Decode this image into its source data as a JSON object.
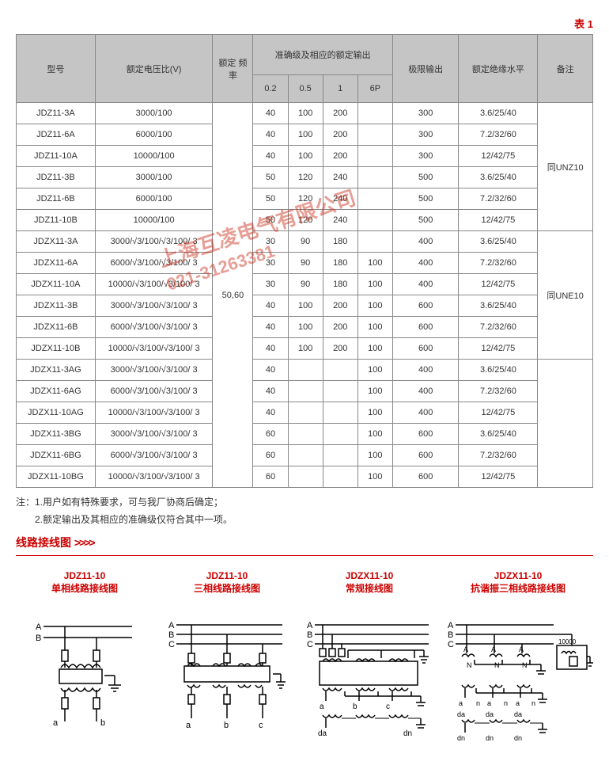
{
  "tableLabel": "表 1",
  "headers": {
    "model": "型号",
    "ratioV": "额定电压比(V)",
    "freq": "额定\n频率",
    "accuracy": "准确级及相应的额定输出",
    "limitOut": "极限输出",
    "insLevel": "额定绝缘水平",
    "remark": "备注",
    "sub": [
      "0.2",
      "0.5",
      "1",
      "6P"
    ]
  },
  "freqVal": "50,60",
  "rows": [
    {
      "m": "JDZ11-3A",
      "r": "3000/100",
      "a": [
        "40",
        "100",
        "200",
        ""
      ],
      "l": "300",
      "i": "3.6/25/40"
    },
    {
      "m": "JDZ11-6A",
      "r": "6000/100",
      "a": [
        "40",
        "100",
        "200",
        ""
      ],
      "l": "300",
      "i": "7.2/32/60"
    },
    {
      "m": "JDZ11-10A",
      "r": "10000/100",
      "a": [
        "40",
        "100",
        "200",
        ""
      ],
      "l": "300",
      "i": "12/42/75"
    },
    {
      "m": "JDZ11-3B",
      "r": "3000/100",
      "a": [
        "50",
        "120",
        "240",
        ""
      ],
      "l": "500",
      "i": "3.6/25/40"
    },
    {
      "m": "JDZ11-6B",
      "r": "6000/100",
      "a": [
        "50",
        "120",
        "240",
        ""
      ],
      "l": "500",
      "i": "7.2/32/60"
    },
    {
      "m": "JDZ11-10B",
      "r": "10000/100",
      "a": [
        "50",
        "120",
        "240",
        ""
      ],
      "l": "500",
      "i": "12/42/75"
    },
    {
      "m": "JDZX11-3A",
      "r": "3000/√3/100/√3/100/ 3",
      "a": [
        "30",
        "90",
        "180",
        ""
      ],
      "l": "400",
      "i": "3.6/25/40"
    },
    {
      "m": "JDZX11-6A",
      "r": "6000/√3/100/√3/100/ 3",
      "a": [
        "30",
        "90",
        "180",
        "100"
      ],
      "l": "400",
      "i": "7.2/32/60"
    },
    {
      "m": "JDZX11-10A",
      "r": "10000/√3/100/√3/100/ 3",
      "a": [
        "30",
        "90",
        "180",
        "100"
      ],
      "l": "400",
      "i": "12/42/75"
    },
    {
      "m": "JDZX11-3B",
      "r": "3000/√3/100/√3/100/ 3",
      "a": [
        "40",
        "100",
        "200",
        "100"
      ],
      "l": "600",
      "i": "3.6/25/40"
    },
    {
      "m": "JDZX11-6B",
      "r": "6000/√3/100/√3/100/ 3",
      "a": [
        "40",
        "100",
        "200",
        "100"
      ],
      "l": "600",
      "i": "7.2/32/60"
    },
    {
      "m": "JDZX11-10B",
      "r": "10000/√3/100/√3/100/ 3",
      "a": [
        "40",
        "100",
        "200",
        "100"
      ],
      "l": "600",
      "i": "12/42/75"
    },
    {
      "m": "JDZX11-3AG",
      "r": "3000/√3/100/√3/100/ 3",
      "a": [
        "40",
        "",
        "",
        "100"
      ],
      "l": "400",
      "i": "3.6/25/40"
    },
    {
      "m": "JDZX11-6AG",
      "r": "6000/√3/100/√3/100/ 3",
      "a": [
        "40",
        "",
        "",
        "100"
      ],
      "l": "400",
      "i": "7.2/32/60"
    },
    {
      "m": "JDZX11-10AG",
      "r": "10000/√3/100/√3/100/ 3",
      "a": [
        "40",
        "",
        "",
        "100"
      ],
      "l": "400",
      "i": "12/42/75"
    },
    {
      "m": "JDZX11-3BG",
      "r": "3000/√3/100/√3/100/ 3",
      "a": [
        "60",
        "",
        "",
        "100"
      ],
      "l": "600",
      "i": "3.6/25/40"
    },
    {
      "m": "JDZX11-6BG",
      "r": "6000/√3/100/√3/100/ 3",
      "a": [
        "60",
        "",
        "",
        "100"
      ],
      "l": "600",
      "i": "7.2/32/60"
    },
    {
      "m": "JDZX11-10BG",
      "r": "10000/√3/100/√3/100/ 3",
      "a": [
        "60",
        "",
        "",
        "100"
      ],
      "l": "600",
      "i": "12/42/75"
    }
  ],
  "remarkGroups": [
    {
      "text": "同UNZ10",
      "span": 6
    },
    {
      "text": "同UNE10",
      "span": 6
    },
    {
      "text": "",
      "span": 6
    }
  ],
  "notes": [
    "注：1.用户如有特殊要求，可与我厂协商后确定；",
    "　　2.额定输出及其相应的准确级仅符合其中一项。"
  ],
  "sectionTitle": "线路接线图",
  "sectionArrows": ">>>>",
  "diagrams": [
    {
      "t1": "JDZ11-10",
      "t2": "单相线路接线图"
    },
    {
      "t1": "JDZ11-10",
      "t2": "三相线路接线图"
    },
    {
      "t1": "JDZX11-10",
      "t2": "常规接线图"
    },
    {
      "t1": "JDZX11-10",
      "t2": "抗谐振三相线路接线图"
    }
  ],
  "watermark": {
    "l1": "上海互凌电气有限公司",
    "l2": "021-31263381"
  },
  "colors": {
    "accent": "#c00",
    "border": "#888",
    "headerBg": "#c5c5c5",
    "wmColor": "rgba(200,40,20,0.45)"
  },
  "colWidths": [
    "86",
    "128",
    "44",
    "38",
    "38",
    "38",
    "38",
    "72",
    "86",
    "60"
  ]
}
